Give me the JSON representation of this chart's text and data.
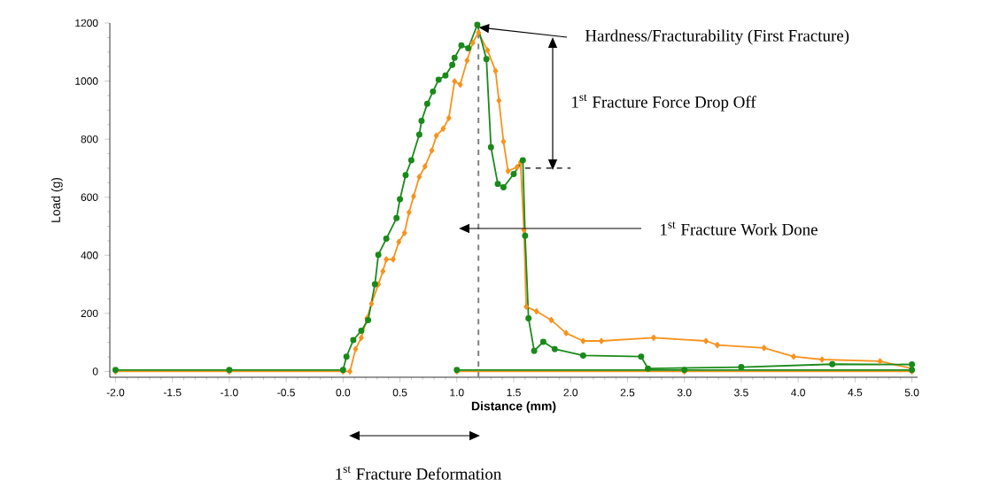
{
  "chart_data": {
    "type": "line",
    "xlabel": "Distance (mm)",
    "ylabel": "Load (g)",
    "xlim": [
      -2.05,
      5.05
    ],
    "ylim": [
      -20,
      1200
    ],
    "xticks": [
      {
        "value": -2,
        "label": "-2.0"
      },
      {
        "value": -1.5,
        "label": "-1.5"
      },
      {
        "value": -1,
        "label": "-1.0"
      },
      {
        "value": -0.5,
        "label": "-0.5"
      },
      {
        "value": 0,
        "label": "0.0"
      },
      {
        "value": 0.5,
        "label": "0.5"
      },
      {
        "value": 1,
        "label": "1.0"
      },
      {
        "value": 1.5,
        "label": "1.5"
      },
      {
        "value": 2,
        "label": "2.0"
      },
      {
        "value": 2.5,
        "label": "2.5"
      },
      {
        "value": 3,
        "label": "3.0"
      },
      {
        "value": 3.5,
        "label": "3.5"
      },
      {
        "value": 4,
        "label": "4.0"
      },
      {
        "value": 4.5,
        "label": "4.5"
      },
      {
        "value": 5,
        "label": "5.0"
      }
    ],
    "yticks": [
      0,
      200,
      400,
      600,
      800,
      1000,
      1200
    ],
    "grid": false,
    "line_style": "solid",
    "series": [
      {
        "color": "#f7931e",
        "marker": "diamond",
        "x": [
          -2.0,
          -1.0,
          0.0,
          0.06,
          0.11,
          0.16,
          0.21,
          0.25,
          0.31,
          0.35,
          0.38,
          0.44,
          0.49,
          0.54,
          0.58,
          0.62,
          0.67,
          0.72,
          0.78,
          0.82,
          0.88,
          0.93,
          0.98,
          1.03,
          1.09,
          1.14,
          1.19,
          1.27,
          1.34,
          1.37,
          1.41,
          1.45,
          1.53,
          1.56,
          1.59,
          1.61,
          1.7,
          1.83,
          1.96,
          2.11,
          2.27,
          2.73,
          3.19,
          3.29,
          3.7,
          3.96,
          4.21,
          4.72,
          5.0,
          5.0,
          3.0,
          1.0
        ],
        "values": [
          0,
          0,
          0,
          0,
          77,
          116,
          183,
          233,
          300,
          345,
          386,
          386,
          446,
          477,
          548,
          603,
          670,
          706,
          761,
          812,
          836,
          873,
          999,
          988,
          1071,
          1132,
          1167,
          1106,
          1035,
          933,
          792,
          690,
          704,
          720,
          487,
          223,
          207,
          177,
          132,
          105,
          105,
          116,
          105,
          91,
          81,
          51,
          41,
          35,
          10,
          0,
          0,
          0
        ]
      },
      {
        "color": "#1a8a1a",
        "marker": "circle",
        "x": [
          -2.0,
          -1.0,
          0.0,
          0.03,
          0.09,
          0.16,
          0.22,
          0.28,
          0.31,
          0.38,
          0.47,
          0.5,
          0.55,
          0.6,
          0.67,
          0.69,
          0.74,
          0.79,
          0.84,
          0.9,
          0.96,
          0.98,
          1.04,
          1.1,
          1.18,
          1.26,
          1.3,
          1.36,
          1.41,
          1.5,
          1.58,
          1.6,
          1.63,
          1.68,
          1.76,
          1.86,
          2.11,
          2.62,
          2.68,
          3.5,
          4.3,
          5.0,
          5.0,
          3.0,
          1.0
        ],
        "values": [
          5,
          5,
          5,
          51,
          108,
          140,
          177,
          300,
          402,
          457,
          528,
          593,
          676,
          727,
          816,
          863,
          922,
          964,
          1005,
          1019,
          1056,
          1080,
          1123,
          1113,
          1194,
          1076,
          772,
          646,
          634,
          680,
          727,
          467,
          183,
          71,
          102,
          77,
          55,
          51,
          10,
          15,
          25,
          24,
          5,
          5,
          5
        ]
      },
      {
        "color": "#000000",
        "marker": "none",
        "line_style": "dashed",
        "x": [
          1.6,
          2.0
        ],
        "values": [
          700,
          700
        ]
      }
    ],
    "ref_lines": [
      {
        "axis": "x",
        "value": 1.19,
        "line_style": "dashed",
        "color": "#808080"
      }
    ],
    "annotations": [
      {
        "text": "Hardness/Fracturability (First Fracture)",
        "x": 1.19,
        "y": 1185
      },
      "1$^{st}$ Fracture Force Drop Off",
      "1$^{st}$ Fracture Work Done",
      "1$^{st}$ Fracture Deformation"
    ]
  }
}
